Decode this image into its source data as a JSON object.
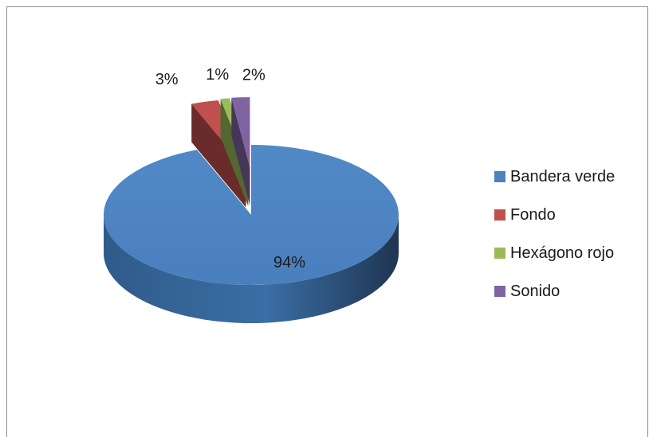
{
  "chart_data": {
    "type": "pie",
    "title": "",
    "series": [
      {
        "name": "Bandera verde",
        "value": 94,
        "label": "94%",
        "color": "#4F81BD"
      },
      {
        "name": "Fondo",
        "value": 3,
        "label": "3%",
        "color": "#C0504D"
      },
      {
        "name": "Hexágono rojo",
        "value": 1,
        "label": "1%",
        "color": "#9BBB59"
      },
      {
        "name": "Sonido",
        "value": 2,
        "label": "2%",
        "color": "#8064A2"
      }
    ],
    "style": "3d-exploded",
    "legend": "right"
  }
}
